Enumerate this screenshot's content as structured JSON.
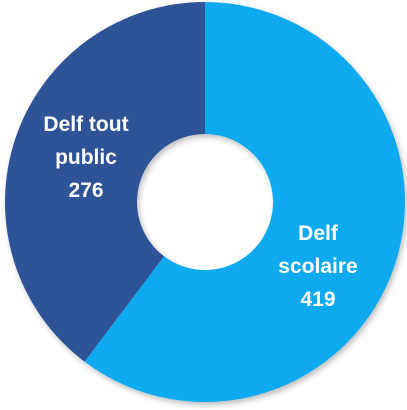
{
  "chart_data": {
    "type": "pie",
    "variant": "donut",
    "title": "",
    "slices": [
      {
        "label_lines": [
          "Delf",
          "scolaire"
        ],
        "value": 419,
        "value_text": "419",
        "color": "#0aaaf0"
      },
      {
        "label_lines": [
          "Delf tout",
          "public"
        ],
        "value": 276,
        "value_text": "276",
        "color": "#2f5297"
      }
    ],
    "legend": "none",
    "start_angle_deg": 0,
    "direction": "clockwise"
  }
}
